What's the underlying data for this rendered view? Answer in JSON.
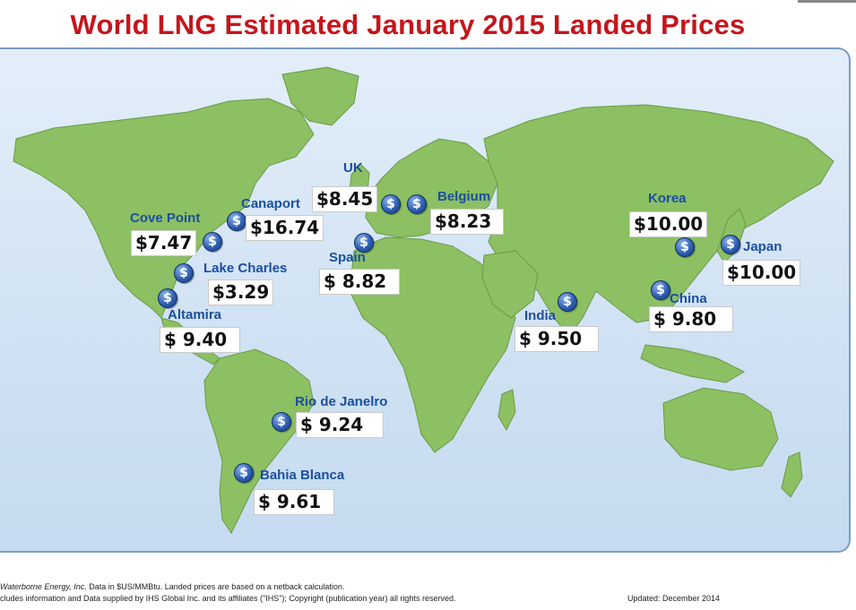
{
  "title": "World LNG Estimated January 2015 Landed Prices",
  "colors": {
    "title": "#c4161c",
    "city_label": "#1a4fa0",
    "land": "#8cc063",
    "ocean": "#d7e7f6"
  },
  "icons": {
    "coin": "dollar-coin-icon",
    "coin_glyph": "$"
  },
  "locations": [
    {
      "key": "cove_point",
      "name": "Cove Point",
      "price": "$7.47"
    },
    {
      "key": "canaport",
      "name": "Canaport",
      "price": "$16.74"
    },
    {
      "key": "lake_charles",
      "name": "Lake Charles",
      "price": "$3.29"
    },
    {
      "key": "altamira",
      "name": "Altamira",
      "price": "$  9.40"
    },
    {
      "key": "uk",
      "name": "UK",
      "price": "$8.45"
    },
    {
      "key": "belgium",
      "name": "Belgium",
      "price": "$8.23"
    },
    {
      "key": "spain",
      "name": "Spain",
      "price": "$  8.82"
    },
    {
      "key": "rio",
      "name": "Rio de Janelro",
      "price": "$  9.24"
    },
    {
      "key": "bahia_blanca",
      "name": "Bahia Blanca",
      "price": "$  9.61"
    },
    {
      "key": "india",
      "name": "India",
      "price": "$  9.50"
    },
    {
      "key": "korea",
      "name": "Korea",
      "price": "$10.00"
    },
    {
      "key": "japan",
      "name": "Japan",
      "price": "$10.00"
    },
    {
      "key": "china",
      "name": "China",
      "price": "$  9.80"
    }
  ],
  "footer": {
    "line1_source": "Waterborne Energy, Inc.",
    "line1_note": "Data in $US/MMBtu. Landed prices are based on a netback calculation.",
    "line2": "cludes information and Data supplied by IHS Global Inc. and its affiliates (\"IHS\"); Copyright (publication year) all rights reserved.",
    "updated": "Updated: December 2014"
  }
}
